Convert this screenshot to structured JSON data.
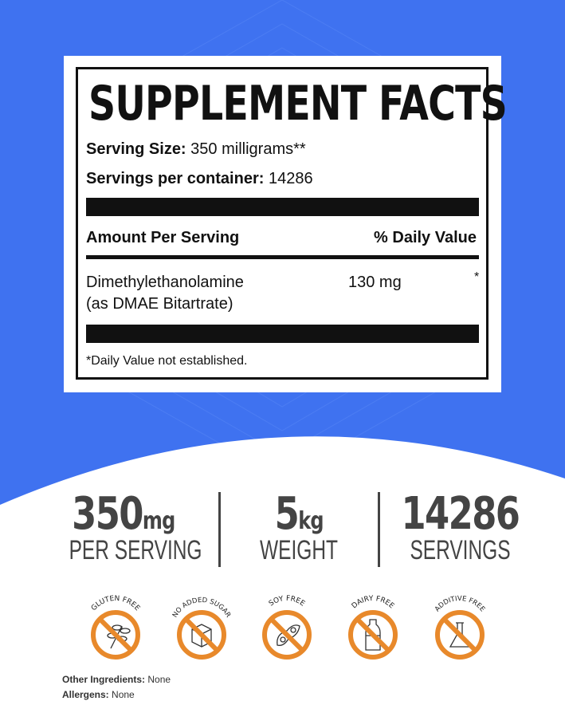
{
  "colors": {
    "background_blue": "#3f72f0",
    "badge_orange": "#e8892b",
    "stat_text": "#444444"
  },
  "label": {
    "title": "SUPPLEMENT FACTS",
    "serving_size_label": "Serving Size:",
    "serving_size_value": "350 milligrams**",
    "servings_label": "Servings per container:",
    "servings_value": "14286",
    "amount_header": "Amount Per Serving",
    "dv_header": "% Daily Value",
    "ingredient_name": "Dimethylethanolamine",
    "ingredient_form": "(as DMAE Bitartrate)",
    "ingredient_amount": "130 mg",
    "ingredient_dv": "*",
    "footnote": "*Daily Value not established."
  },
  "stats": [
    {
      "value": "350",
      "unit": "mg",
      "caption": "PER SERVING"
    },
    {
      "value": "5",
      "unit": "kg",
      "caption": "WEIGHT"
    },
    {
      "value": "14286",
      "unit": "",
      "caption": "SERVINGS"
    }
  ],
  "badges": [
    {
      "label": "GLUTEN FREE",
      "icon": "wheat-icon"
    },
    {
      "label": "NO ADDED SUGAR",
      "icon": "sugar-cube-icon"
    },
    {
      "label": "SOY FREE",
      "icon": "soybean-icon"
    },
    {
      "label": "DAIRY FREE",
      "icon": "milk-bottle-icon"
    },
    {
      "label": "ADDITIVE FREE",
      "icon": "flask-icon"
    }
  ],
  "footer": {
    "other_ingredients_label": "Other Ingredients:",
    "other_ingredients_value": "None",
    "allergens_label": "Allergens:",
    "allergens_value": "None"
  }
}
